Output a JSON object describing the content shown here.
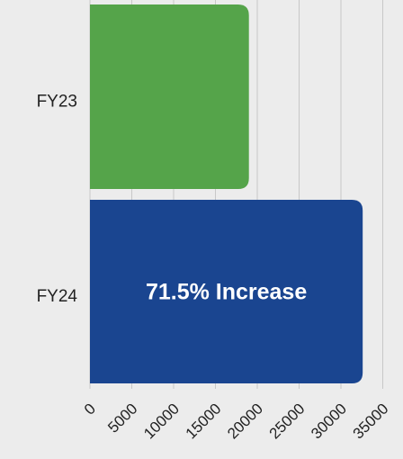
{
  "chart_data": {
    "type": "hbar",
    "categories": [
      "FY23",
      "FY24"
    ],
    "values": [
      19000,
      32600
    ],
    "colors": [
      "#55a44a",
      "#1a4590"
    ],
    "annotation": "71.5% Increase",
    "xlim": [
      0,
      35000
    ],
    "xticks": [
      0,
      5000,
      10000,
      15000,
      20000,
      25000,
      30000,
      35000
    ],
    "grid": true
  }
}
